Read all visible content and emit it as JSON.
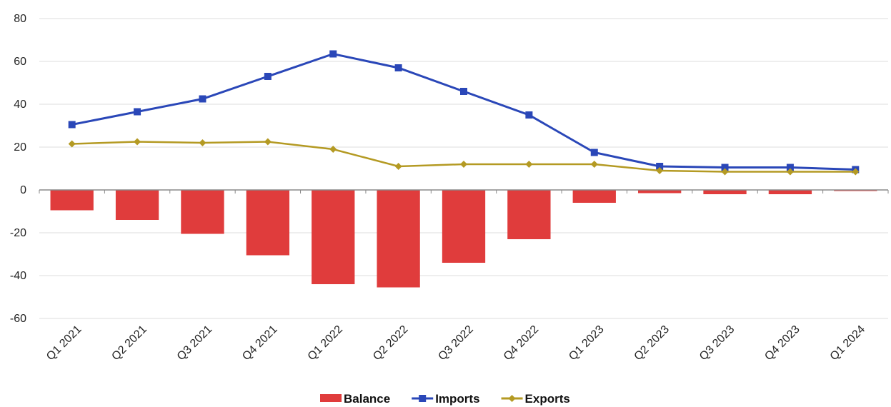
{
  "chart_data": {
    "type": "bar",
    "title": "",
    "xlabel": "",
    "ylabel": "",
    "categories": [
      "Q1 2021",
      "Q2 2021",
      "Q3 2021",
      "Q4 2021",
      "Q1 2022",
      "Q2 2022",
      "Q3 2022",
      "Q4 2022",
      "Q1 2023",
      "Q2 2023",
      "Q3 2023",
      "Q4 2023",
      "Q1 2024"
    ],
    "ylim": [
      -60,
      80
    ],
    "yticks": [
      -60,
      -40,
      -20,
      0,
      20,
      40,
      60,
      80
    ],
    "grid": true,
    "legend": "bottom-center",
    "series": [
      {
        "name": "Balance",
        "type": "bar",
        "color": "#e03c3c",
        "values": [
          -9.5,
          -14,
          -20.5,
          -30.5,
          -44,
          -45.5,
          -34,
          -23,
          -6,
          -1.5,
          -2,
          -2,
          -0.5
        ]
      },
      {
        "name": "Imports",
        "type": "line",
        "color": "#2a47b8",
        "marker": "square",
        "values": [
          30.5,
          36.5,
          42.5,
          53,
          63.5,
          57,
          46,
          35,
          17.5,
          11,
          10.5,
          10.5,
          9.5
        ]
      },
      {
        "name": "Exports",
        "type": "line",
        "color": "#b49a23",
        "marker": "diamond",
        "values": [
          21.5,
          22.5,
          22,
          22.5,
          19,
          11,
          12,
          12,
          12,
          9,
          8.5,
          8.5,
          8.5
        ]
      }
    ]
  }
}
